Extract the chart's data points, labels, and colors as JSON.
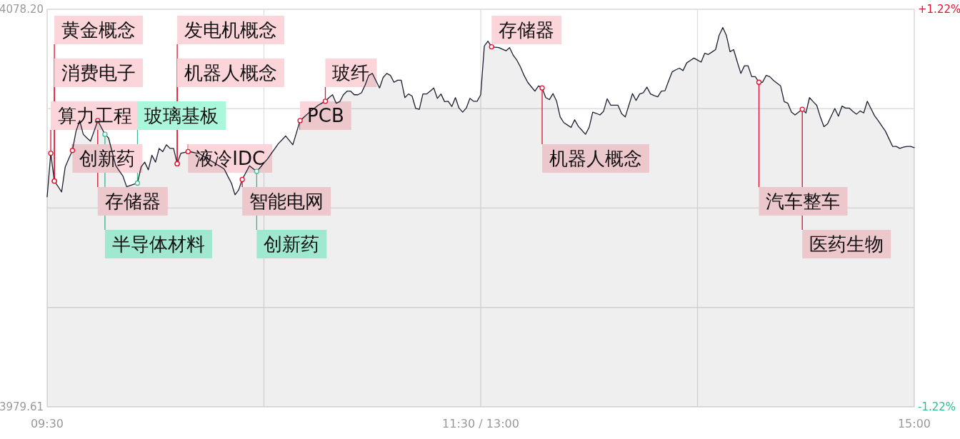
{
  "chart_data": {
    "type": "area",
    "categories": [
      "09:30",
      null,
      null,
      null,
      null,
      null,
      null,
      null,
      null,
      null,
      null,
      null,
      null,
      null,
      null,
      null,
      null,
      null,
      null,
      null,
      null,
      null,
      null,
      null,
      null,
      null,
      null,
      null,
      null,
      null,
      null,
      null,
      null,
      null,
      null,
      null,
      null,
      null,
      null,
      null,
      null,
      null,
      null,
      null,
      null,
      null,
      null,
      null,
      null,
      null,
      null,
      null,
      null,
      null,
      null,
      null,
      null,
      null,
      null,
      null,
      null,
      null,
      null,
      null,
      null,
      null,
      null,
      null,
      null,
      null,
      null,
      null,
      null,
      null,
      null,
      null,
      null,
      null,
      null,
      null,
      null,
      null,
      null,
      null,
      null,
      null,
      null,
      null,
      null,
      null,
      null,
      null,
      null,
      null,
      null,
      null,
      null,
      null,
      null,
      null,
      null,
      null,
      null,
      null,
      null,
      null,
      null,
      null,
      null,
      null,
      null,
      null,
      null,
      null,
      null,
      null,
      null,
      null,
      null,
      null,
      "11:30 / 13:00",
      null,
      null,
      null,
      null,
      null,
      null,
      null,
      null,
      null,
      null,
      null,
      null,
      null,
      null,
      null,
      null,
      null,
      null,
      null,
      null,
      null,
      null,
      null,
      null,
      null,
      null,
      null,
      null,
      null,
      null,
      null,
      null,
      null,
      null,
      null,
      null,
      null,
      null,
      null,
      null,
      null,
      null,
      null,
      null,
      null,
      null,
      null,
      null,
      null,
      null,
      null,
      null,
      null,
      null,
      null,
      null,
      null,
      null,
      null,
      null,
      null,
      null,
      null,
      null,
      null,
      null,
      null,
      null,
      null,
      null,
      null,
      null,
      null,
      null,
      null,
      null,
      null,
      null,
      null,
      null,
      null,
      null,
      null,
      null,
      null,
      null,
      null,
      null,
      null,
      null,
      null,
      null,
      null,
      null,
      null,
      null,
      null,
      null,
      null,
      null,
      null,
      null,
      null,
      null,
      null,
      null,
      null,
      null,
      null,
      null,
      null,
      null,
      null,
      null,
      null,
      null,
      null,
      null,
      null,
      "15:00"
    ],
    "ylim": [
      3979.61,
      4078.2
    ],
    "yticks": [
      {
        "value": 3979.61,
        "label": "3979.61"
      },
      {
        "value": 4004.26,
        "label": null
      },
      {
        "value": 4028.91,
        "label": null
      },
      {
        "value": 4053.55,
        "label": null
      },
      {
        "value": 4078.2,
        "label": "4078.20"
      }
    ],
    "y2lim": [
      -1.22,
      1.22
    ],
    "y2ticks": [
      {
        "value": -1.22,
        "label": "-1.22%"
      },
      {
        "value": 1.22,
        "label": "+1.22%"
      }
    ],
    "grid": true,
    "series": [
      {
        "color": "#1c1f30",
        "values": [
          4031.7,
          4042.5,
          4035.6,
          4034.3,
          4032.9,
          4039.1,
          4041.2,
          4043.2,
          4048.0,
          4050.6,
          4047.2,
          4046.3,
          4045.5,
          4048.0,
          4050.6,
          4048.9,
          4047.2,
          4046.3,
          4042.8,
          4039.4,
          4038.1,
          4036.8,
          4034.2,
          4034.5,
          4034.8,
          4035.1,
          4039.1,
          4040.3,
          4038.4,
          4042.0,
          4040.3,
          4043.7,
          4042.9,
          4044.6,
          4043.7,
          4043.7,
          4039.9,
          4042.5,
          4042.7,
          4042.9,
          4042.8,
          4042.6,
          4042.5,
          4041.9,
          4041.4,
          4040.8,
          4040.3,
          4039.7,
          4039.2,
          4038.6,
          4036.8,
          4035.1,
          4032.2,
          4033.4,
          4036.0,
          4037.7,
          4039.4,
          4038.7,
          4038.0,
          4039.0,
          4040.1,
          4041.1,
          4042.4,
          4043.6,
          4044.9,
          4045.8,
          4046.8,
          4045.7,
          4044.6,
          4047.6,
          4050.6,
          4051.4,
          4052.2,
          4053.0,
          4053.7,
          4054.4,
          4054.9,
          4055.4,
          4056.3,
          4057.0,
          4054.9,
          4055.3,
          4057.0,
          4057.9,
          4057.9,
          4057.0,
          4057.0,
          4057.5,
          4059.4,
          4061.8,
          4062.3,
          4060.5,
          4058.7,
          4061.3,
          4062.3,
          4061.8,
          4060.1,
          4060.6,
          4060.6,
          4056.3,
          4057.2,
          4056.7,
          4053.6,
          4053.4,
          4057.2,
          4057.2,
          4057.9,
          4058.7,
          4056.1,
          4057.2,
          4055.3,
          4055.4,
          4054.1,
          4056.3,
          4053.7,
          4052.7,
          4053.7,
          4056.1,
          4055.4,
          4055.4,
          4057.0,
          4069.1,
          4070.3,
          4068.9,
          4068.8,
          4068.7,
          4068.3,
          4067.9,
          4068.7,
          4066.8,
          4065.6,
          4063.9,
          4061.8,
          4060.1,
          4059.0,
          4057.9,
          4059.2,
          4058.7,
          4056.3,
          4055.8,
          4057.3,
          4055.4,
          4051.5,
          4050.1,
          4049.5,
          4048.9,
          4050.8,
          4049.2,
          4048.2,
          4047.2,
          4048.9,
          4052.7,
          4052.4,
          4052.0,
          4052.9,
          4056.0,
          4054.4,
          4054.4,
          4054.4,
          4052.3,
          4051.5,
          4054.4,
          4057.3,
          4055.6,
          4057.2,
          4057.5,
          4058.9,
          4057.2,
          4056.8,
          4056.5,
          4057.9,
          4058.0,
          4060.4,
          4062.7,
          4063.2,
          4063.6,
          4063.0,
          4064.9,
          4065.5,
          4066.1,
          4065.6,
          4065.1,
          4067.3,
          4067.0,
          4067.6,
          4068.2,
          4071.8,
          4073.7,
          4071.7,
          4067.7,
          4068.2,
          4065.2,
          4062.3,
          4064.2,
          4064.2,
          4061.5,
          4061.5,
          4060.1,
          4060.1,
          4061.8,
          4061.5,
          4060.6,
          4059.9,
          4059.2,
          4055.3,
          4054.9,
          4052.7,
          4052.0,
          4052.7,
          4053.4,
          4052.5,
          4056.3,
          4055.3,
          4054.4,
          4051.5,
          4049.1,
          4049.8,
          4051.7,
          4053.6,
          4051.7,
          4054.2,
          4053.7,
          4053.7,
          4052.9,
          4052.2,
          4053.0,
          4052.5,
          4055.4,
          4053.6,
          4051.8,
          4050.6,
          4049.3,
          4048.0,
          4046.1,
          4044.2,
          4044.2,
          4043.7,
          4044.0,
          4044.2,
          4044.2,
          4043.9
        ]
      },
      {
        "type": "scatter",
        "marker": "circle",
        "color": "#e60f2d",
        "values": [
          null,
          4042.5,
          4035.6,
          null,
          null,
          null,
          null,
          4043.2,
          null,
          null,
          null,
          null,
          null,
          null,
          4050.6,
          null,
          null,
          null,
          null,
          null,
          null,
          null,
          null,
          null,
          null,
          null,
          null,
          null,
          null,
          null,
          null,
          null,
          null,
          null,
          null,
          null,
          4039.9,
          null,
          null,
          4042.9,
          null,
          null,
          null,
          null,
          null,
          null,
          null,
          null,
          null,
          null,
          null,
          null,
          null,
          null,
          4036.0,
          null,
          null,
          null,
          null,
          null,
          null,
          null,
          null,
          null,
          null,
          null,
          null,
          null,
          null,
          null,
          4050.6,
          null,
          null,
          null,
          null,
          null,
          null,
          4055.4,
          null,
          null,
          null,
          null,
          null,
          null,
          null,
          null,
          null,
          null,
          null,
          null,
          null,
          null,
          null,
          null,
          null,
          null,
          null,
          null,
          null,
          null,
          null,
          null,
          null,
          null,
          null,
          null,
          null,
          null,
          null,
          null,
          null,
          null,
          null,
          null,
          null,
          null,
          null,
          null,
          null,
          null,
          null,
          null,
          null,
          4068.9,
          null,
          null,
          null,
          null,
          null,
          null,
          null,
          null,
          null,
          null,
          null,
          null,
          null,
          4058.7,
          null,
          null,
          null,
          null,
          null,
          null,
          null,
          null,
          null,
          null,
          null,
          null,
          null,
          null,
          null,
          null,
          null,
          null,
          null,
          null,
          null,
          null,
          null,
          null,
          null,
          null,
          null,
          null,
          null,
          null,
          null,
          null,
          null,
          null,
          null,
          null,
          null,
          null,
          null,
          null,
          null,
          null,
          null,
          null,
          null,
          null,
          null,
          null,
          null,
          null,
          null,
          null,
          null,
          null,
          null,
          null,
          null,
          null,
          null,
          4060.1,
          null,
          null,
          null,
          null,
          null,
          null,
          null,
          null,
          null,
          null,
          null,
          4053.4,
          null,
          null,
          null,
          null,
          null,
          null,
          null,
          null,
          null,
          null,
          null,
          null,
          null,
          null,
          null,
          null,
          null,
          null,
          null,
          null,
          null,
          null,
          null,
          null,
          null,
          null,
          null,
          null,
          null,
          null,
          null
        ],
        "value_labels": [
          null,
          "算力工程",
          "黄金概念",
          null,
          null,
          null,
          null,
          "创新药",
          null,
          null,
          null,
          null,
          null,
          null,
          "存储器",
          null,
          null,
          null,
          null,
          null,
          null,
          null,
          null,
          null,
          null,
          null,
          null,
          null,
          null,
          null,
          null,
          null,
          null,
          null,
          null,
          null,
          "发电机概念",
          null,
          null,
          "液冷IDC",
          null,
          null,
          null,
          null,
          null,
          null,
          null,
          null,
          null,
          null,
          null,
          null,
          null,
          null,
          "智能电网",
          null,
          null,
          null,
          null,
          null,
          null,
          null,
          null,
          null,
          null,
          null,
          null,
          null,
          null,
          null,
          "PCB",
          null,
          null,
          null,
          null,
          null,
          null,
          "玻纤",
          null,
          null,
          null,
          null,
          null,
          null,
          null,
          null,
          null,
          null,
          null,
          null,
          null,
          null,
          null,
          null,
          null,
          null,
          null,
          null,
          null,
          null,
          null,
          null,
          null,
          null,
          null,
          null,
          null,
          null,
          null,
          null,
          null,
          null,
          null,
          null,
          null,
          null,
          null,
          null,
          null,
          null,
          null,
          null,
          null,
          "存储器",
          null,
          null,
          null,
          null,
          null,
          null,
          null,
          null,
          null,
          null,
          null,
          null,
          null,
          "机器人概念",
          null,
          null,
          null,
          null,
          null,
          null,
          null,
          null,
          null,
          null,
          null,
          null,
          null,
          null,
          null,
          null,
          null,
          null,
          null,
          null,
          null,
          null,
          null,
          null,
          null,
          null,
          null,
          null,
          null,
          null,
          null,
          null,
          null,
          null,
          null,
          null,
          null,
          null,
          null,
          null,
          null,
          null,
          null,
          null,
          null,
          null,
          null,
          null,
          null,
          null,
          null,
          null,
          null,
          null,
          null,
          null,
          null,
          null,
          null,
          "汽车整车",
          null,
          null,
          null,
          null,
          null,
          null,
          null,
          null,
          null,
          null,
          null,
          "医药生物",
          null,
          null,
          null,
          null,
          null,
          null,
          null,
          null,
          null,
          null,
          null,
          null,
          null,
          null,
          null,
          null,
          null,
          null,
          null,
          null,
          null,
          null,
          null,
          null,
          null,
          null,
          null,
          null,
          null,
          null,
          null
        ]
      },
      {
        "type": "scatter",
        "marker": "circle",
        "color": "#e60f2d",
        "values": [
          null,
          null,
          4035.6,
          null,
          null,
          null,
          null,
          null,
          null,
          null,
          null,
          null,
          null,
          null,
          null,
          null,
          null,
          null,
          null,
          null,
          null,
          null,
          null,
          null,
          null,
          null,
          null,
          null,
          null,
          null,
          null,
          null,
          null,
          null,
          null,
          null,
          4039.9,
          null,
          null,
          null,
          null,
          null,
          null,
          null,
          null,
          null,
          null,
          null,
          null,
          null,
          null,
          null,
          null,
          null,
          null,
          null,
          null,
          null,
          null,
          null,
          null,
          null,
          null,
          null,
          null,
          null,
          null,
          null,
          null,
          null,
          null,
          null,
          null,
          null,
          null,
          null,
          null,
          null,
          null,
          null,
          null,
          null,
          null,
          null,
          null,
          null,
          null,
          null,
          null,
          null,
          null,
          null,
          null,
          null,
          null,
          null,
          null,
          null,
          null,
          null,
          null,
          null,
          null,
          null,
          null,
          null,
          null,
          null,
          null,
          null,
          null,
          null,
          null,
          null,
          null,
          null,
          null,
          null,
          null,
          null,
          null,
          null,
          null,
          null,
          null,
          null,
          null,
          null,
          null,
          null,
          null,
          null,
          null,
          null,
          null,
          null,
          null,
          null,
          null,
          null,
          null,
          null,
          null,
          null,
          null,
          null,
          null,
          null,
          null,
          null,
          null,
          null,
          null,
          null,
          null,
          null,
          null,
          null,
          null,
          null,
          null,
          null,
          null,
          null,
          null,
          null,
          null,
          null,
          null,
          null,
          null,
          null,
          null,
          null,
          null,
          null,
          null,
          null,
          null,
          null,
          null,
          null,
          null,
          null,
          null,
          null,
          null,
          null,
          null,
          null,
          null,
          null,
          null,
          null,
          null,
          null,
          null,
          null,
          null,
          null,
          null,
          null,
          null,
          null,
          null,
          null,
          null,
          null,
          null,
          null,
          null,
          null,
          null,
          null,
          null,
          null,
          null,
          null,
          null,
          null,
          null,
          null,
          null,
          null,
          null,
          null,
          null,
          null,
          null,
          null,
          null,
          null,
          null,
          null,
          null,
          null,
          null,
          null,
          null,
          null,
          null
        ],
        "value_labels": [
          null,
          null,
          "消费电子",
          null,
          null,
          null,
          null,
          null,
          null,
          null,
          null,
          null,
          null,
          null,
          null,
          null,
          null,
          null,
          null,
          null,
          null,
          null,
          null,
          null,
          null,
          null,
          null,
          null,
          null,
          null,
          null,
          null,
          null,
          null,
          null,
          null,
          "机器人概念",
          null,
          null,
          null,
          null,
          null,
          null,
          null,
          null,
          null,
          null,
          null,
          null,
          null,
          null,
          null,
          null,
          null,
          null,
          null,
          null,
          null,
          null,
          null,
          null,
          null,
          null,
          null,
          null,
          null,
          null,
          null,
          null,
          null,
          null,
          null,
          null,
          null,
          null,
          null,
          null,
          null,
          null,
          null,
          null,
          null,
          null,
          null,
          null,
          null,
          null,
          null,
          null,
          null,
          null,
          null,
          null,
          null,
          null,
          null,
          null,
          null,
          null,
          null,
          null,
          null,
          null,
          null,
          null,
          null,
          null,
          null,
          null,
          null,
          null,
          null,
          null,
          null,
          null,
          null,
          null,
          null,
          null,
          null,
          null,
          null,
          null,
          null,
          null,
          null,
          null,
          null,
          null,
          null,
          null,
          null,
          null,
          null,
          null,
          null,
          null,
          null,
          null,
          null,
          null,
          null,
          null,
          null,
          null,
          null,
          null,
          null,
          null,
          null,
          null,
          null,
          null,
          null,
          null,
          null,
          null,
          null,
          null,
          null,
          null,
          null,
          null,
          null,
          null,
          null,
          null,
          null,
          null,
          null,
          null,
          null,
          null,
          null,
          null,
          null,
          null,
          null,
          null,
          null,
          null,
          null,
          null,
          null,
          null,
          null,
          null,
          null,
          null,
          null,
          null,
          null,
          null,
          null,
          null,
          null,
          null,
          null,
          null,
          null,
          null,
          null,
          null,
          null,
          null,
          null,
          null,
          null,
          null,
          null,
          null,
          null,
          null,
          null,
          null,
          null,
          null,
          null,
          null,
          null,
          null,
          null,
          null,
          null,
          null,
          null,
          null,
          null,
          null,
          null,
          null,
          null,
          null,
          null,
          null,
          null,
          null,
          null,
          null,
          null,
          null
        ]
      },
      {
        "type": "scatter",
        "marker": "circle",
        "color": "#3dbf8f",
        "values": [
          null,
          null,
          null,
          null,
          null,
          null,
          null,
          null,
          null,
          null,
          null,
          null,
          null,
          null,
          null,
          null,
          4047.2,
          null,
          null,
          null,
          null,
          null,
          null,
          null,
          null,
          4035.1,
          null,
          null,
          null,
          null,
          null,
          null,
          null,
          null,
          null,
          null,
          null,
          null,
          null,
          null,
          null,
          null,
          null,
          null,
          null,
          null,
          null,
          null,
          null,
          null,
          null,
          null,
          null,
          null,
          null,
          null,
          null,
          null,
          4038.0,
          null,
          null,
          null,
          null,
          null,
          null,
          null,
          null,
          null,
          null,
          null,
          null,
          null,
          null,
          null,
          null,
          null,
          null,
          null,
          null,
          null,
          null,
          null,
          null,
          null,
          null,
          null,
          null,
          null,
          null,
          null,
          null,
          null,
          null,
          null,
          null,
          null,
          null,
          null,
          null,
          null,
          null,
          null,
          null,
          null,
          null,
          null,
          null,
          null,
          null,
          null,
          null,
          null,
          null,
          null,
          null,
          null,
          null,
          null,
          null,
          null,
          null,
          null,
          null,
          null,
          null,
          null,
          null,
          null,
          null,
          null,
          null,
          null,
          null,
          null,
          null,
          null,
          null,
          null,
          null,
          null,
          null,
          null,
          null,
          null,
          null,
          null,
          null,
          null,
          null,
          null,
          null,
          null,
          null,
          null,
          null,
          null,
          null,
          null,
          null,
          null,
          null,
          null,
          null,
          null,
          null,
          null,
          null,
          null,
          null,
          null,
          null,
          null,
          null,
          null,
          null,
          null,
          null,
          null,
          null,
          null,
          null,
          null,
          null,
          null,
          null,
          null,
          null,
          null,
          null,
          null,
          null,
          null,
          null,
          null,
          null,
          null,
          null,
          null,
          null,
          null,
          null,
          null,
          null,
          null,
          null,
          null,
          null,
          null,
          null,
          null,
          null,
          null,
          null,
          null,
          null,
          null,
          null,
          null,
          null,
          null,
          null,
          null,
          null,
          null,
          null,
          null,
          null,
          null,
          null,
          null,
          null,
          null,
          null,
          null,
          null,
          null,
          null,
          null,
          null,
          null,
          null
        ],
        "value_labels": [
          null,
          null,
          null,
          null,
          null,
          null,
          null,
          null,
          null,
          null,
          null,
          null,
          null,
          null,
          null,
          null,
          "半导体材料",
          null,
          null,
          null,
          null,
          null,
          null,
          null,
          null,
          "玻璃基板",
          null,
          null,
          null,
          null,
          null,
          null,
          null,
          null,
          null,
          null,
          null,
          null,
          null,
          null,
          null,
          null,
          null,
          null,
          null,
          null,
          null,
          null,
          null,
          null,
          null,
          null,
          null,
          null,
          null,
          null,
          null,
          null,
          "创新药",
          null,
          null,
          null,
          null,
          null,
          null,
          null,
          null,
          null,
          null,
          null,
          null,
          null,
          null,
          null,
          null,
          null,
          null,
          null,
          null,
          null,
          null,
          null,
          null,
          null,
          null,
          null,
          null,
          null,
          null,
          null,
          null,
          null,
          null,
          null,
          null,
          null,
          null,
          null,
          null,
          null,
          null,
          null,
          null,
          null,
          null,
          null,
          null,
          null,
          null,
          null,
          null,
          null,
          null,
          null,
          null,
          null,
          null,
          null,
          null,
          null,
          null,
          null,
          null,
          null,
          null,
          null,
          null,
          null,
          null,
          null,
          null,
          null,
          null,
          null,
          null,
          null,
          null,
          null,
          null,
          null,
          null,
          null,
          null,
          null,
          null,
          null,
          null,
          null,
          null,
          null,
          null,
          null,
          null,
          null,
          null,
          null,
          null,
          null,
          null,
          null,
          null,
          null,
          null,
          null,
          null,
          null,
          null,
          null,
          null,
          null,
          null,
          null,
          null,
          null,
          null,
          null,
          null,
          null,
          null,
          null,
          null,
          null,
          null,
          null,
          null,
          null,
          null,
          null,
          null,
          null,
          null,
          null,
          null,
          null,
          null,
          null,
          null,
          null,
          null,
          null,
          null,
          null,
          null,
          null,
          null,
          null,
          null,
          null,
          null,
          null,
          null,
          null,
          null,
          null,
          null,
          null,
          null,
          null,
          null,
          null,
          null,
          null,
          null,
          null,
          null,
          null,
          null,
          null,
          null,
          null,
          null,
          null,
          null,
          null,
          null,
          null,
          null,
          null,
          null,
          null,
          null
        ]
      }
    ]
  }
}
